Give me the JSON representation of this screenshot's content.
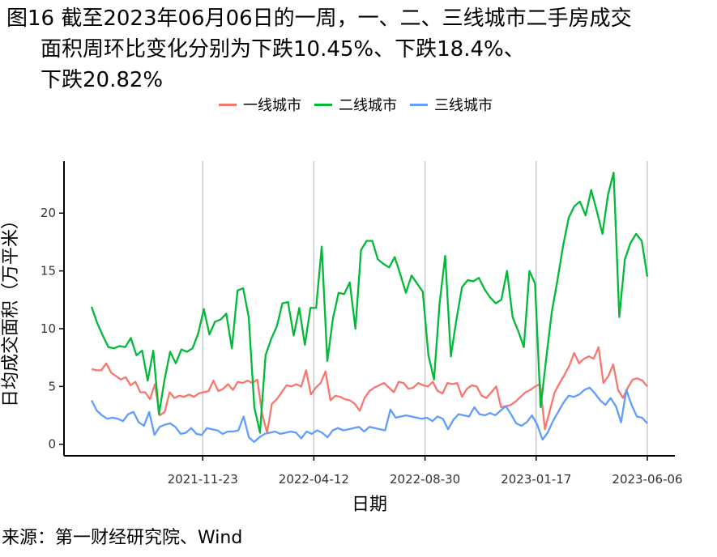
{
  "figure": {
    "title_line1": "图16  截至2023年06月06日的一周，一、二、三线城市二手房成交",
    "title_line2": "面积周环比变化分别为下跌10.45%、下跌18.4%、",
    "title_line3": "下跌20.82%",
    "source": "来源：第一财经研究院、Wind"
  },
  "chart_data": {
    "type": "line",
    "xlabel": "日期",
    "ylabel": "日均成交面积（万平米）",
    "ylim": [
      -1,
      24.5
    ],
    "yticks": [
      0,
      5,
      10,
      15,
      20
    ],
    "x_start": "2021-07-06",
    "x_end": "2023-06-06",
    "xticks": [
      "2021-11-23",
      "2022-04-12",
      "2022-08-30",
      "2023-01-17",
      "2023-06-06"
    ],
    "grid_vertical": true,
    "legend_position": "top",
    "series": [
      {
        "name": "一线城市",
        "color": "#F8766D",
        "values": [
          6.5,
          6.4,
          6.4,
          7.0,
          6.2,
          5.9,
          5.6,
          5.8,
          5.1,
          5.4,
          4.5,
          4.5,
          3.9,
          5.2,
          2.5,
          2.8,
          4.5,
          4.0,
          4.2,
          4.1,
          4.3,
          4.1,
          4.4,
          4.5,
          4.6,
          5.5,
          4.6,
          4.8,
          5.2,
          4.7,
          5.4,
          5.3,
          5.5,
          5.3,
          5.6,
          2.6,
          1.0,
          3.5,
          3.9,
          4.5,
          5.1,
          5.0,
          5.2,
          5.0,
          6.4,
          4.3,
          4.9,
          5.3,
          6.3,
          3.8,
          4.2,
          4.1,
          3.9,
          3.8,
          3.5,
          2.9,
          4.0,
          4.6,
          4.9,
          5.1,
          5.3,
          4.9,
          4.5,
          5.4,
          5.3,
          4.8,
          4.9,
          5.3,
          5.1,
          5.0,
          5.4,
          4.6,
          4.4,
          5.3,
          5.2,
          5.3,
          4.1,
          4.8,
          5.1,
          5.0,
          4.2,
          4.0,
          4.5,
          5.0,
          3.2,
          3.3,
          3.4,
          3.7,
          4.1,
          4.5,
          4.7,
          5.0,
          5.2,
          1.3,
          2.9,
          4.5,
          5.3,
          6.0,
          6.8,
          7.9,
          7.0,
          7.4,
          7.6,
          7.4,
          8.4,
          5.3,
          5.9,
          6.9,
          4.7,
          4.0,
          4.9,
          5.6,
          5.7,
          5.5,
          5.0
        ]
      },
      {
        "name": "二线城市",
        "color": "#00BA38",
        "values": [
          11.9,
          10.5,
          9.4,
          8.4,
          8.3,
          8.5,
          8.4,
          9.2,
          7.7,
          8.1,
          5.5,
          8.1,
          2.6,
          5.6,
          8.0,
          7.0,
          8.2,
          8.0,
          8.3,
          9.6,
          11.7,
          9.5,
          10.6,
          10.8,
          11.3,
          8.3,
          13.3,
          13.5,
          11.0,
          3.2,
          1.0,
          7.7,
          9.1,
          10.2,
          12.2,
          12.3,
          9.4,
          11.8,
          8.6,
          11.8,
          11.8,
          17.1,
          7.2,
          10.9,
          13.1,
          13.0,
          14.0,
          10.0,
          16.8,
          17.6,
          17.6,
          16.0,
          15.6,
          15.3,
          16.2,
          14.7,
          13.1,
          14.6,
          13.9,
          13.2,
          7.7,
          5.6,
          12.2,
          16.3,
          7.6,
          10.8,
          13.6,
          14.2,
          14.1,
          14.4,
          13.4,
          12.7,
          12.2,
          12.5,
          15.0,
          11.0,
          9.8,
          8.4,
          15.0,
          13.9,
          3.2,
          7.5,
          11.5,
          14.2,
          17.2,
          19.6,
          20.6,
          21.0,
          19.8,
          22.0,
          20.2,
          18.2,
          21.6,
          23.5,
          11.0,
          16.0,
          17.4,
          18.2,
          17.6,
          14.5
        ]
      },
      {
        "name": "三线城市",
        "color": "#619CFF",
        "values": [
          3.8,
          2.9,
          2.5,
          2.2,
          2.3,
          2.2,
          2.0,
          2.6,
          2.8,
          1.9,
          1.6,
          2.8,
          0.8,
          1.5,
          1.7,
          1.8,
          1.5,
          0.9,
          1.0,
          1.4,
          0.9,
          0.8,
          1.4,
          1.3,
          1.2,
          0.9,
          1.1,
          1.1,
          1.2,
          2.4,
          0.6,
          0.2,
          0.6,
          0.9,
          1.0,
          1.1,
          0.9,
          1.0,
          1.1,
          1.0,
          0.5,
          1.1,
          0.9,
          1.2,
          1.0,
          0.6,
          1.2,
          1.4,
          1.2,
          1.3,
          1.4,
          1.5,
          1.1,
          1.5,
          1.4,
          1.3,
          1.2,
          3.0,
          2.3,
          2.4,
          2.5,
          2.4,
          2.3,
          2.2,
          2.3,
          2.0,
          2.4,
          2.2,
          1.3,
          2.1,
          2.6,
          2.5,
          2.4,
          3.2,
          2.6,
          2.5,
          2.7,
          2.5,
          2.9,
          3.3,
          2.6,
          1.8,
          1.6,
          1.9,
          2.5,
          1.7,
          0.4,
          1.0,
          2.0,
          2.8,
          3.6,
          4.2,
          4.1,
          4.3,
          4.7,
          4.9,
          4.4,
          3.8,
          3.4,
          4.0,
          3.3,
          1.9,
          4.7,
          3.4,
          2.4,
          2.3,
          1.8
        ]
      }
    ]
  }
}
